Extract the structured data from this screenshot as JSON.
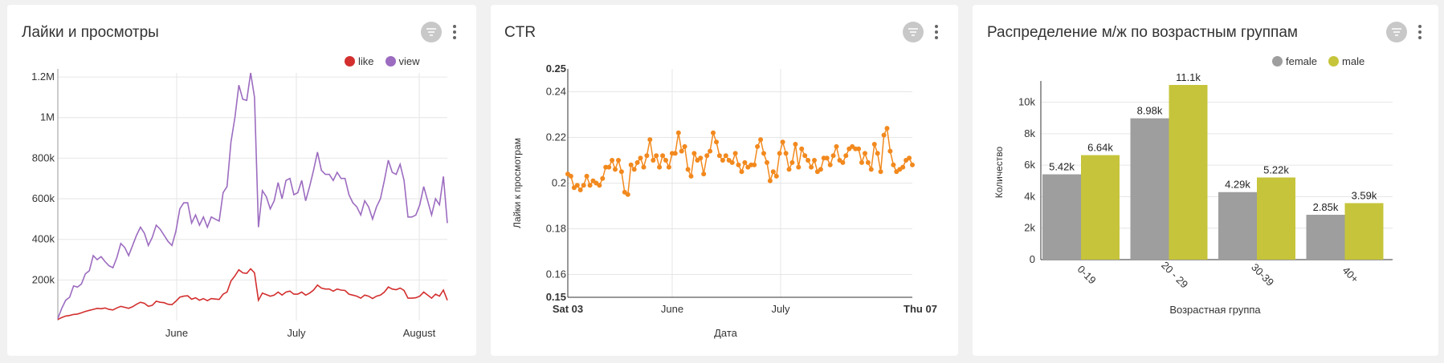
{
  "colors": {
    "like": "#d32f2f",
    "view": "#9c6cc0",
    "ctr": "#f2891e",
    "female": "#9e9e9e",
    "male": "#c6c43b",
    "grid": "#e6e6e6",
    "axis": "#333333"
  },
  "panels": {
    "likes_views": {
      "title": "Лайки и просмотры",
      "legend": [
        "like",
        "view"
      ]
    },
    "ctr": {
      "title": "CTR"
    },
    "age": {
      "title": "Распределение м/ж по возрастным группам",
      "legend": [
        "female",
        "male"
      ]
    }
  },
  "chart_data": [
    {
      "type": "line",
      "title": "Лайки и просмотры",
      "xlabel": "",
      "ylabel": "",
      "x_ticks": [
        "June",
        "July",
        "August"
      ],
      "y_ticks": [
        "200k",
        "400k",
        "600k",
        "800k",
        "1M",
        "1.2M"
      ],
      "ylim": [
        0,
        1220000
      ],
      "series": [
        {
          "name": "view",
          "values": [
            10000,
            60000,
            100000,
            115000,
            170000,
            165000,
            180000,
            230000,
            245000,
            320000,
            300000,
            315000,
            290000,
            270000,
            260000,
            310000,
            380000,
            360000,
            320000,
            370000,
            420000,
            460000,
            430000,
            370000,
            410000,
            470000,
            450000,
            420000,
            390000,
            370000,
            440000,
            550000,
            580000,
            580000,
            480000,
            520000,
            470000,
            510000,
            460000,
            510000,
            500000,
            490000,
            630000,
            660000,
            880000,
            1000000,
            1160000,
            1090000,
            1085000,
            1220000,
            1100000,
            460000,
            640000,
            610000,
            550000,
            590000,
            680000,
            600000,
            690000,
            700000,
            620000,
            630000,
            690000,
            590000,
            660000,
            740000,
            830000,
            740000,
            720000,
            720000,
            690000,
            730000,
            700000,
            700000,
            620000,
            580000,
            560000,
            520000,
            590000,
            560000,
            500000,
            560000,
            600000,
            690000,
            790000,
            730000,
            720000,
            770000,
            690000,
            510000,
            510000,
            520000,
            570000,
            660000,
            590000,
            520000,
            600000,
            570000,
            710000,
            480000
          ]
        },
        {
          "name": "like",
          "values": [
            5000,
            15000,
            22000,
            25000,
            30000,
            32000,
            38000,
            45000,
            50000,
            55000,
            60000,
            58000,
            62000,
            55000,
            52000,
            62000,
            70000,
            65000,
            60000,
            68000,
            80000,
            90000,
            85000,
            70000,
            75000,
            95000,
            90000,
            88000,
            80000,
            78000,
            95000,
            115000,
            120000,
            122000,
            105000,
            112000,
            100000,
            108000,
            98000,
            108000,
            106000,
            104000,
            130000,
            140000,
            195000,
            220000,
            250000,
            235000,
            232000,
            255000,
            235000,
            100000,
            135000,
            128000,
            120000,
            125000,
            140000,
            125000,
            140000,
            145000,
            130000,
            130000,
            140000,
            125000,
            135000,
            150000,
            175000,
            160000,
            155000,
            155000,
            145000,
            155000,
            150000,
            148000,
            130000,
            125000,
            120000,
            110000,
            125000,
            120000,
            108000,
            120000,
            125000,
            140000,
            165000,
            155000,
            152000,
            160000,
            148000,
            110000,
            110000,
            112000,
            120000,
            140000,
            125000,
            110000,
            130000,
            120000,
            150000,
            100000
          ]
        }
      ]
    },
    {
      "type": "line",
      "title": "CTR",
      "xlabel": "Дата",
      "ylabel": "Лайки к просмотрам",
      "x_ticks": [
        "Sat 03",
        "June",
        "July",
        "Thu 07"
      ],
      "y_ticks": [
        "0.15",
        "0.16",
        "0.18",
        "0.2",
        "0.22",
        "0.24",
        "0.25"
      ],
      "ylim": [
        0.15,
        0.25
      ],
      "series": [
        {
          "name": "ctr",
          "values": [
            0.204,
            0.203,
            0.198,
            0.199,
            0.197,
            0.199,
            0.203,
            0.199,
            0.201,
            0.2,
            0.199,
            0.202,
            0.207,
            0.207,
            0.21,
            0.206,
            0.21,
            0.205,
            0.196,
            0.195,
            0.208,
            0.206,
            0.209,
            0.211,
            0.207,
            0.212,
            0.219,
            0.21,
            0.212,
            0.207,
            0.212,
            0.21,
            0.207,
            0.213,
            0.213,
            0.222,
            0.214,
            0.216,
            0.206,
            0.203,
            0.213,
            0.21,
            0.211,
            0.204,
            0.212,
            0.214,
            0.222,
            0.218,
            0.212,
            0.21,
            0.212,
            0.21,
            0.209,
            0.213,
            0.208,
            0.205,
            0.209,
            0.207,
            0.208,
            0.208,
            0.216,
            0.219,
            0.213,
            0.209,
            0.201,
            0.205,
            0.203,
            0.213,
            0.218,
            0.213,
            0.206,
            0.209,
            0.217,
            0.207,
            0.215,
            0.212,
            0.21,
            0.207,
            0.21,
            0.205,
            0.206,
            0.211,
            0.211,
            0.208,
            0.212,
            0.216,
            0.21,
            0.209,
            0.212,
            0.215,
            0.216,
            0.215,
            0.215,
            0.209,
            0.213,
            0.209,
            0.206,
            0.217,
            0.213,
            0.205,
            0.221,
            0.224,
            0.214,
            0.208,
            0.205,
            0.206,
            0.207,
            0.21,
            0.211,
            0.208
          ]
        }
      ]
    },
    {
      "type": "bar",
      "title": "Распределение м/ж по возрастным группам",
      "xlabel": "Возрастная группа",
      "ylabel": "Количество",
      "categories": [
        "0-19",
        "20 - 29",
        "30-39",
        "40+"
      ],
      "y_ticks": [
        "0",
        "2k",
        "4k",
        "6k",
        "8k",
        "10k"
      ],
      "ylim": [
        0,
        11100
      ],
      "series": [
        {
          "name": "female",
          "values": [
            5420,
            8980,
            4290,
            2850
          ],
          "labels": [
            "5.42k",
            "8.98k",
            "4.29k",
            "2.85k"
          ]
        },
        {
          "name": "male",
          "values": [
            6640,
            11100,
            5220,
            3590
          ],
          "labels": [
            "6.64k",
            "11.1k",
            "5.22k",
            "3.59k"
          ]
        }
      ]
    }
  ]
}
